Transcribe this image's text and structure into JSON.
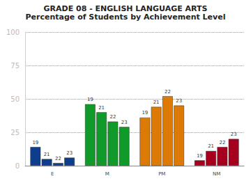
{
  "chart_data": {
    "type": "bar",
    "title": "GRADE 08 - ENGLISH LANGUAGE ARTS",
    "subtitle": "Percentage of Students by Achievement Level",
    "categories": [
      "E",
      "M",
      "PM",
      "NM"
    ],
    "series": [
      {
        "name": "19",
        "values": [
          14,
          46,
          36,
          4
        ]
      },
      {
        "name": "21",
        "values": [
          5,
          40,
          44,
          11
        ]
      },
      {
        "name": "22",
        "values": [
          2,
          33,
          52,
          14
        ]
      },
      {
        "name": "23",
        "values": [
          6,
          29,
          45,
          20
        ]
      }
    ],
    "colors": [
      "#0d3d8c",
      "#0f9a2a",
      "#dc7a05",
      "#a5001e"
    ],
    "ylim": [
      0,
      100
    ],
    "yticks": [
      0,
      25,
      50,
      75,
      100
    ],
    "grid": true
  }
}
